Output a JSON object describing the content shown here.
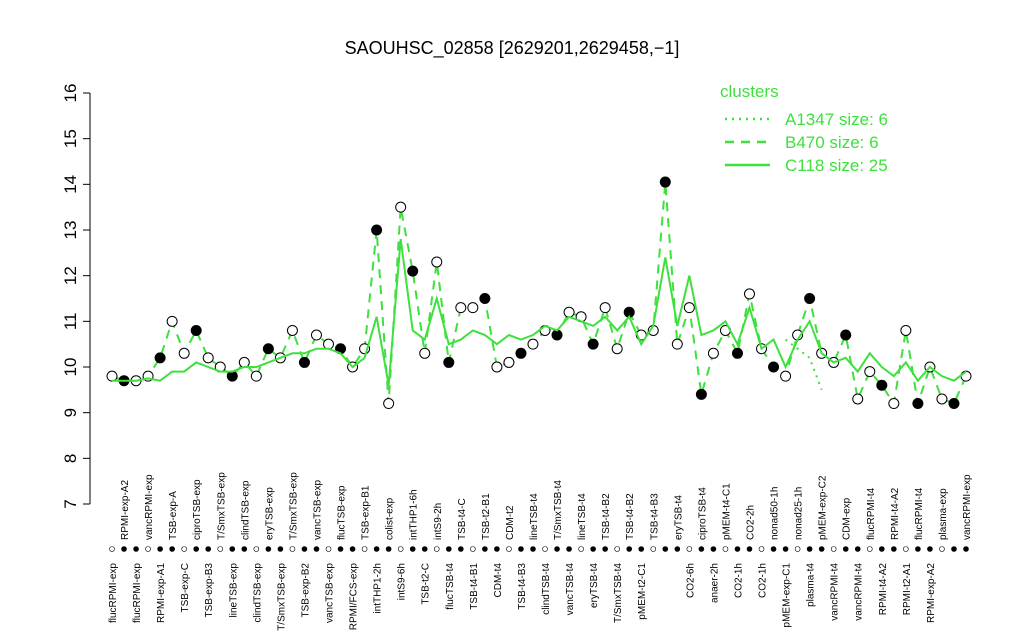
{
  "chart_data": {
    "type": "line",
    "title": "SAOUHSC_02858 [2629201,2629458,−1]",
    "categories": [
      "flucRPMI-exp",
      "RPMI-exp-A2",
      "flucRPMI-exp",
      "vancRPMI-exp",
      "RPMI-exp-A1",
      "TSB-exp-A",
      "TSB-exp-C",
      "ciproTSB-exp",
      "TSB-exp-B3",
      "T/SmxTSB-exp",
      "lineTSB-exp",
      "clindTSB-exp",
      "clindTSB-exp",
      "eryTSB-exp",
      "T/SmxTSB-exp",
      "T/SmxTSB-exp",
      "TSB-exp-B2",
      "vancTSB-exp",
      "vancTSB-exp",
      "flucTSB-exp",
      "RPMI/FCS-exp",
      "TSB-exp-B1",
      "intTHP1-2h",
      "colist-exp",
      "intS9-6h",
      "intTHP1-6h",
      "TSB-t2-C",
      "intS9-2h",
      "flucTSB-t4",
      "TSB-t4-C",
      "TSB-t4-B1",
      "TSB-t2-B1",
      "CDM-t4",
      "CDM-t2",
      "TSB-t4-B3",
      "lineTSB-t4",
      "clindTSB-t4",
      "T/SmxTSB-t4",
      "vancTSB-t4",
      "lineTSB-t4",
      "eryTSB-t4",
      "TSB-t4-B2",
      "T/SmxTSB-t4",
      "TSB-t4-B2",
      "pMEM-t2-C1",
      "TSB-t4-B3",
      null,
      "eryTSB-t4",
      "CO2-6h",
      "ciproTSB-t4",
      "anaer-2h",
      "pMEM-t4-C1",
      "CO2-1h",
      "CO2-2h",
      "CO2-1h",
      "nonad50-1h",
      "pMEM-exp-C1",
      "nonad25-1h",
      "plasma-t4",
      "pMEM-exp-C2",
      "vancRPMI-t4",
      "CDM-exp",
      "vancRPMI-t4",
      "flucRPMI-t4",
      "RPMI-t4-A2",
      "RPMI-t4-A2",
      "RPMI-t2-A1",
      "flucRPMI-t4",
      "RPMI-exp-A2",
      "plasma-exp",
      null,
      "vancRPMI-exp"
    ],
    "series": [
      {
        "name": "A1347 size: 6",
        "color": "#3ee03e",
        "style": "dotted",
        "values": [
          null,
          null,
          null,
          null,
          null,
          null,
          null,
          null,
          null,
          null,
          null,
          null,
          null,
          null,
          null,
          null,
          null,
          null,
          null,
          null,
          null,
          null,
          null,
          null,
          null,
          null,
          null,
          null,
          null,
          null,
          null,
          null,
          null,
          null,
          null,
          null,
          null,
          null,
          null,
          null,
          null,
          null,
          null,
          null,
          null,
          null,
          null,
          null,
          null,
          null,
          null,
          null,
          null,
          null,
          null,
          null,
          10.6,
          10.4,
          10.2,
          9.5,
          null,
          null,
          null,
          null,
          null,
          null,
          null,
          null,
          null,
          null,
          null,
          null
        ]
      },
      {
        "name": "B470 size: 6",
        "color": "#3ee03e",
        "style": "dashed",
        "values": [
          9.8,
          9.7,
          9.7,
          9.8,
          10.2,
          11.0,
          10.3,
          10.8,
          10.2,
          10.0,
          9.8,
          10.1,
          9.8,
          10.4,
          10.2,
          10.8,
          10.1,
          10.7,
          10.5,
          10.4,
          10.0,
          10.4,
          13.0,
          9.2,
          13.5,
          12.1,
          10.3,
          12.3,
          10.1,
          11.3,
          11.3,
          11.5,
          10.0,
          10.1,
          10.3,
          10.5,
          10.8,
          10.7,
          11.2,
          11.1,
          10.5,
          11.3,
          10.4,
          11.2,
          10.7,
          10.8,
          14.05,
          10.5,
          11.3,
          9.4,
          10.3,
          10.8,
          10.3,
          11.6,
          10.4,
          10.0,
          9.8,
          10.7,
          11.5,
          10.3,
          10.1,
          10.7,
          9.3,
          9.9,
          9.6,
          9.2,
          10.8,
          9.2,
          10.0,
          9.3,
          9.2,
          9.8
        ]
      },
      {
        "name": "C118 size: 25",
        "color": "#3ee03e",
        "style": "solid",
        "values": [
          9.7,
          9.7,
          9.7,
          9.75,
          9.7,
          9.9,
          9.9,
          10.1,
          10.0,
          9.9,
          9.9,
          10.0,
          10.0,
          10.1,
          10.2,
          10.3,
          10.3,
          10.4,
          10.4,
          10.3,
          10.0,
          10.2,
          11.1,
          9.6,
          12.8,
          10.8,
          10.6,
          11.5,
          10.5,
          10.6,
          10.8,
          10.7,
          10.5,
          10.7,
          10.6,
          10.7,
          10.9,
          10.8,
          11.1,
          11.0,
          10.9,
          11.1,
          10.8,
          11.1,
          10.5,
          10.9,
          12.4,
          10.9,
          12.0,
          10.7,
          10.8,
          11.0,
          10.5,
          11.3,
          10.4,
          10.6,
          10.0,
          10.6,
          11.0,
          10.3,
          10.1,
          10.2,
          9.9,
          10.3,
          10.0,
          9.8,
          10.1,
          9.7,
          10.0,
          9.8,
          9.7,
          9.9
        ]
      }
    ],
    "legend_title": "clusters",
    "ylim": [
      7,
      16
    ],
    "yticks": [
      7,
      8,
      9,
      10,
      11,
      12,
      13,
      14,
      15,
      16
    ]
  }
}
